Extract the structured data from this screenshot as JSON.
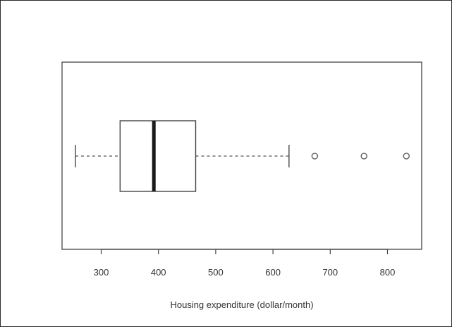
{
  "chart_data": {
    "type": "boxplot",
    "orientation": "horizontal",
    "title": "",
    "xlabel": "Housing expenditure (dollar/month)",
    "ylabel": "",
    "xlim": [
      235,
      855
    ],
    "xticks": [
      300,
      400,
      500,
      600,
      700,
      800
    ],
    "grid": false,
    "legend": "none",
    "box": {
      "whisker_low": 255,
      "q1": 333,
      "median": 392,
      "q3": 465,
      "whisker_high": 628,
      "outliers": [
        673,
        759,
        833
      ]
    }
  }
}
